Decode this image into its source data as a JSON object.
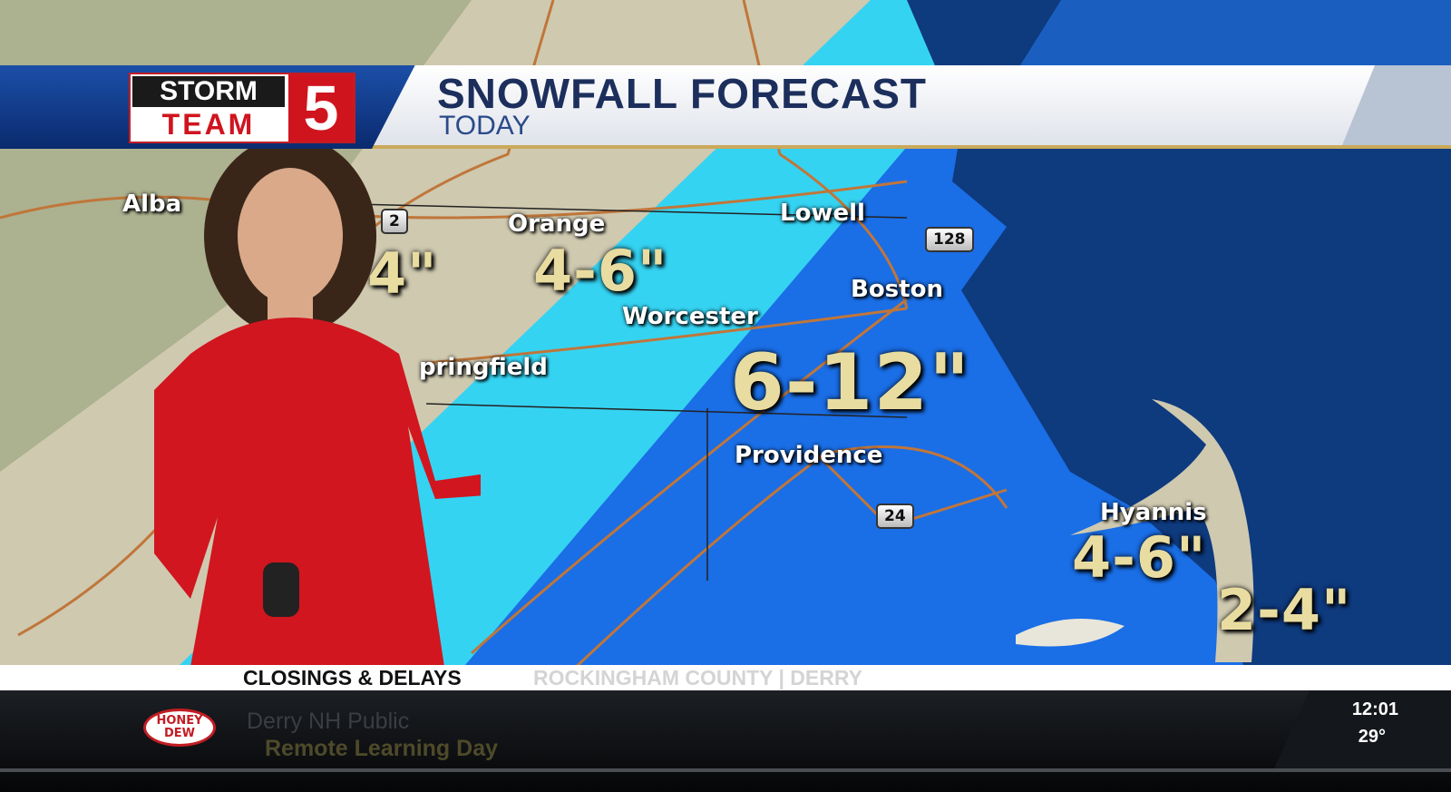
{
  "header": {
    "logo_text": "STORM TEAM 5",
    "logo_storm": "STORM",
    "logo_team": "TEAM",
    "logo_number": "5",
    "title": "SNOWFALL FORECAST",
    "subtitle": "TODAY"
  },
  "map": {
    "colors": {
      "land": "#cfc9b0",
      "light_snow": "#35d3f2",
      "heavy_snow": "#1a6ee6",
      "ocean": "#0e3a7e",
      "roads": "#c0763a"
    },
    "cities": [
      "Alba",
      "Orange",
      "Lowell",
      "Boston",
      "Worcester",
      "pringfield",
      "Providence",
      "Hyannis"
    ],
    "amounts": [
      "4\"",
      "4-6\"",
      "6-12\"",
      "4-6\"",
      "2-4\""
    ],
    "routes": [
      "2",
      "128",
      "24"
    ]
  },
  "ticker": {
    "label": "CLOSINGS & DELAYS",
    "region": "ROCKINGHAM COUNTY | DERRY",
    "sponsor": "HONEY DEW",
    "item_name": "Derry NH Public",
    "item_status": "Remote Learning Day",
    "time": "12:01",
    "temperature": "29°"
  }
}
